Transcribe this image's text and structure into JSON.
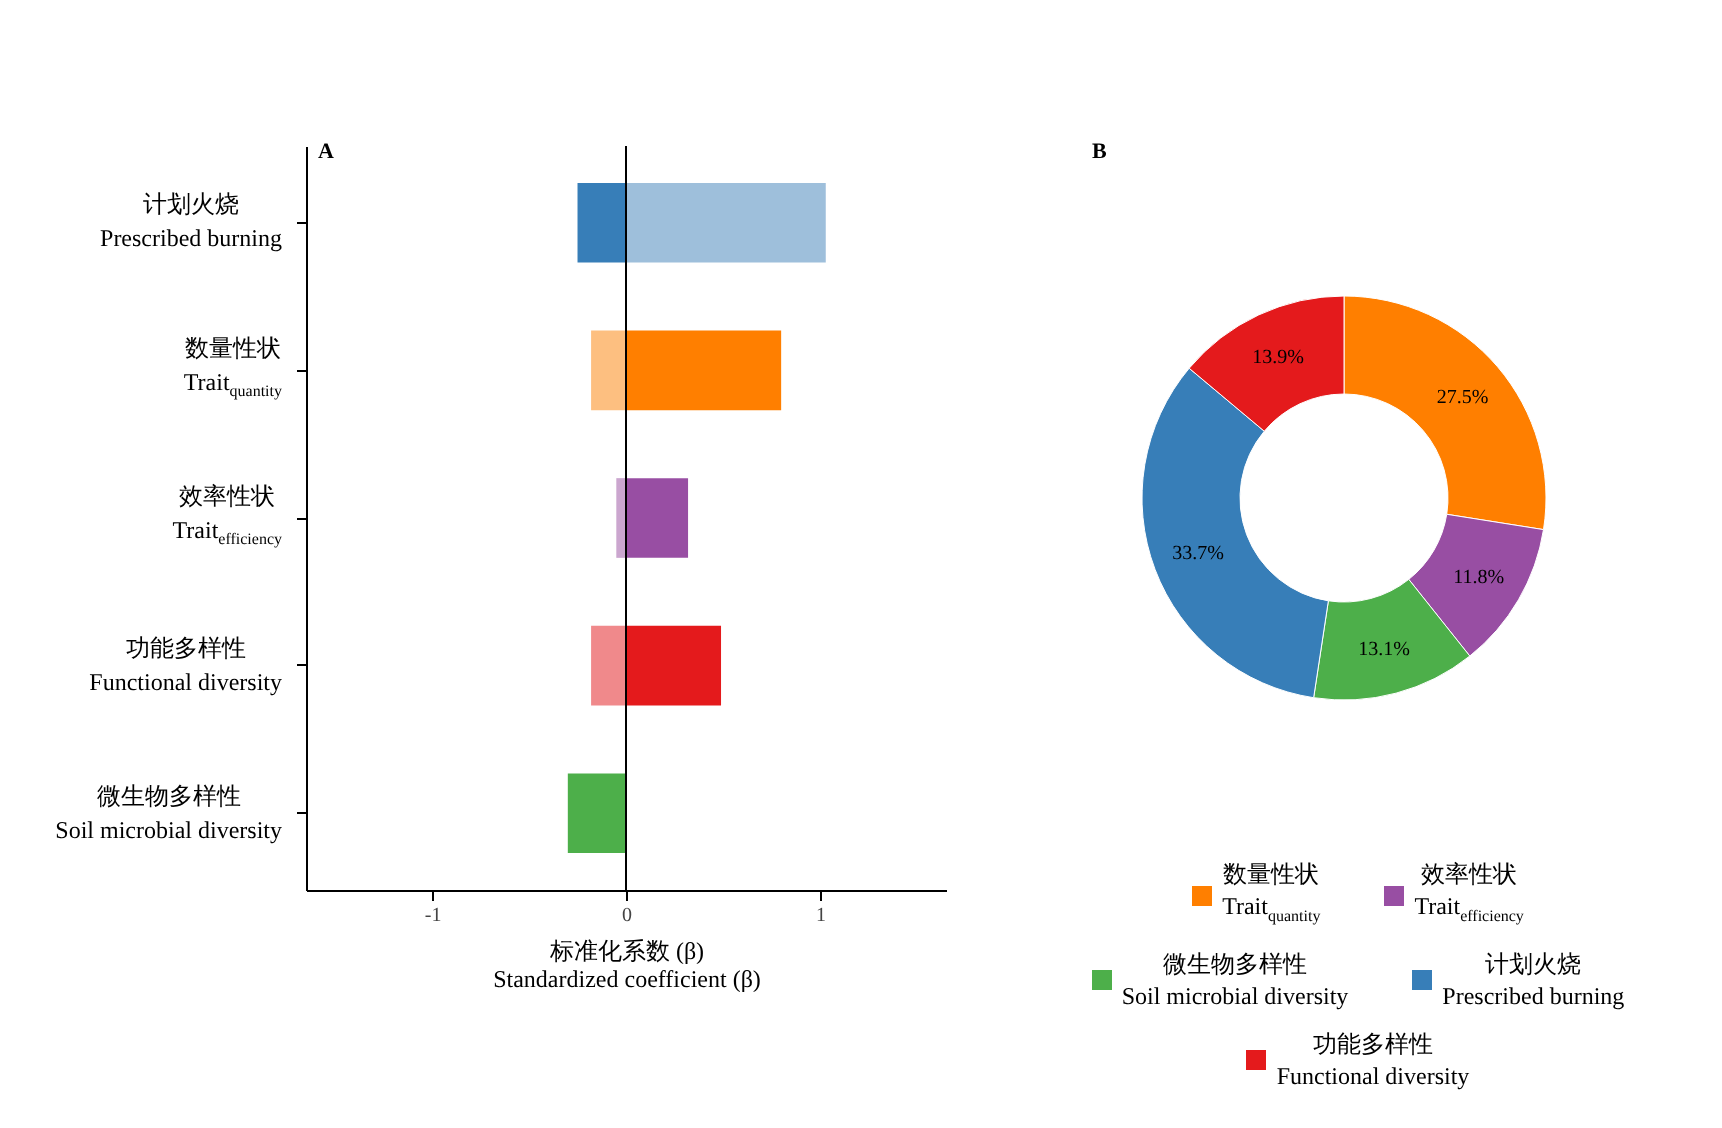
{
  "chart_data": [
    {
      "type": "bar",
      "orientation": "horizontal",
      "stacked": true,
      "title": "A",
      "xlabel": "标准化系数 (β)\nStandardized coefficient (β)",
      "categories": [
        "计划火烧\nPrescribed burning",
        "数量性状\nTrait$_{quantity}$",
        "效率性状\nTrait$_{efficiency}$",
        "功能多样性\nFunctional diversity",
        "微生物多样性\nSoil microbial diversity"
      ],
      "series": [
        {
          "colors": [
            "#377eb8",
            "#fdbf80",
            "#cba6cf",
            "#f0898b",
            "#4daf4a"
          ],
          "values": [
            -0.25,
            -0.18,
            -0.05,
            -0.18,
            -0.3
          ]
        },
        {
          "colors": [
            "#9ebfdb",
            "#ff7f00",
            "#984ea3",
            "#e41a1c",
            null
          ],
          "values": [
            1.03,
            0.8,
            0.32,
            0.49,
            null
          ]
        }
      ],
      "xlim": [
        -1.65,
        1.65
      ],
      "xticks": [
        -1,
        0,
        1
      ],
      "ref_lines": [
        {
          "axis": "x",
          "value": 0,
          "color": "#000000"
        }
      ],
      "grid": false
    },
    {
      "type": "donut",
      "title": "B",
      "categories": [
        "数量性状\nTrait$_{quantity}$",
        "效率性状\nTrait$_{efficiency}$",
        "微生物多样性\nSoil microbial diversity",
        "计划火烧\nPrescribed burning",
        "功能多样性\nFunctional diversity"
      ],
      "values": [
        27.5,
        11.8,
        13.1,
        33.7,
        13.9
      ],
      "colors": [
        "#ff7f00",
        "#984ea3",
        "#4daf4a",
        "#377eb8",
        "#e41a1c"
      ],
      "value_labels": [
        "27.5%",
        "11.8%",
        "13.1%",
        "33.7%",
        "13.9%"
      ],
      "legend": "bottom"
    }
  ]
}
